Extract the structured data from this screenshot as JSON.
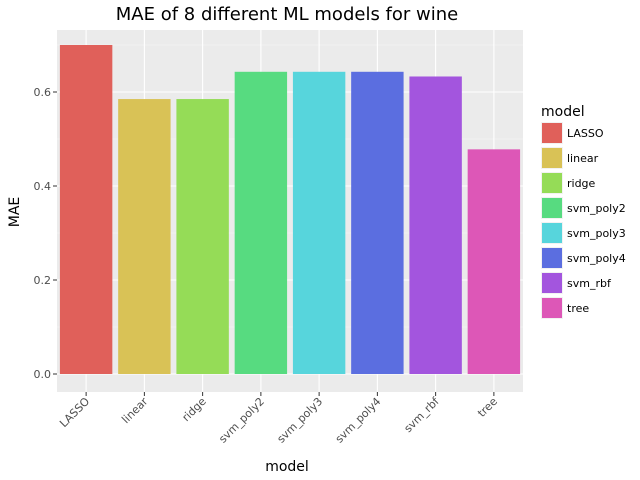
{
  "chart_data": {
    "type": "bar",
    "title": "MAE of 8 different ML models for wine",
    "xlabel": "model",
    "ylabel": "MAE",
    "categories": [
      "LASSO",
      "linear",
      "ridge",
      "svm_poly2",
      "svm_poly3",
      "svm_poly4",
      "svm_rbf",
      "tree"
    ],
    "values": [
      0.7,
      0.585,
      0.585,
      0.643,
      0.643,
      0.643,
      0.633,
      0.478
    ],
    "colors": [
      "#E0605A",
      "#D9C256",
      "#95DC57",
      "#57DB80",
      "#57D5DC",
      "#5B6EE0",
      "#A355DE",
      "#DD57B7"
    ],
    "ylim": [
      0,
      0.72
    ],
    "yticks": [
      0.0,
      0.2,
      0.4,
      0.6
    ],
    "ytick_labels": [
      "0.0",
      "0.2",
      "0.4",
      "0.6"
    ],
    "panel_background": "#EBEBEB",
    "grid": true,
    "legend": {
      "title": "model",
      "position": "right",
      "entries": [
        "LASSO",
        "linear",
        "ridge",
        "svm_poly2",
        "svm_poly3",
        "svm_poly4",
        "svm_rbf",
        "tree"
      ]
    }
  }
}
